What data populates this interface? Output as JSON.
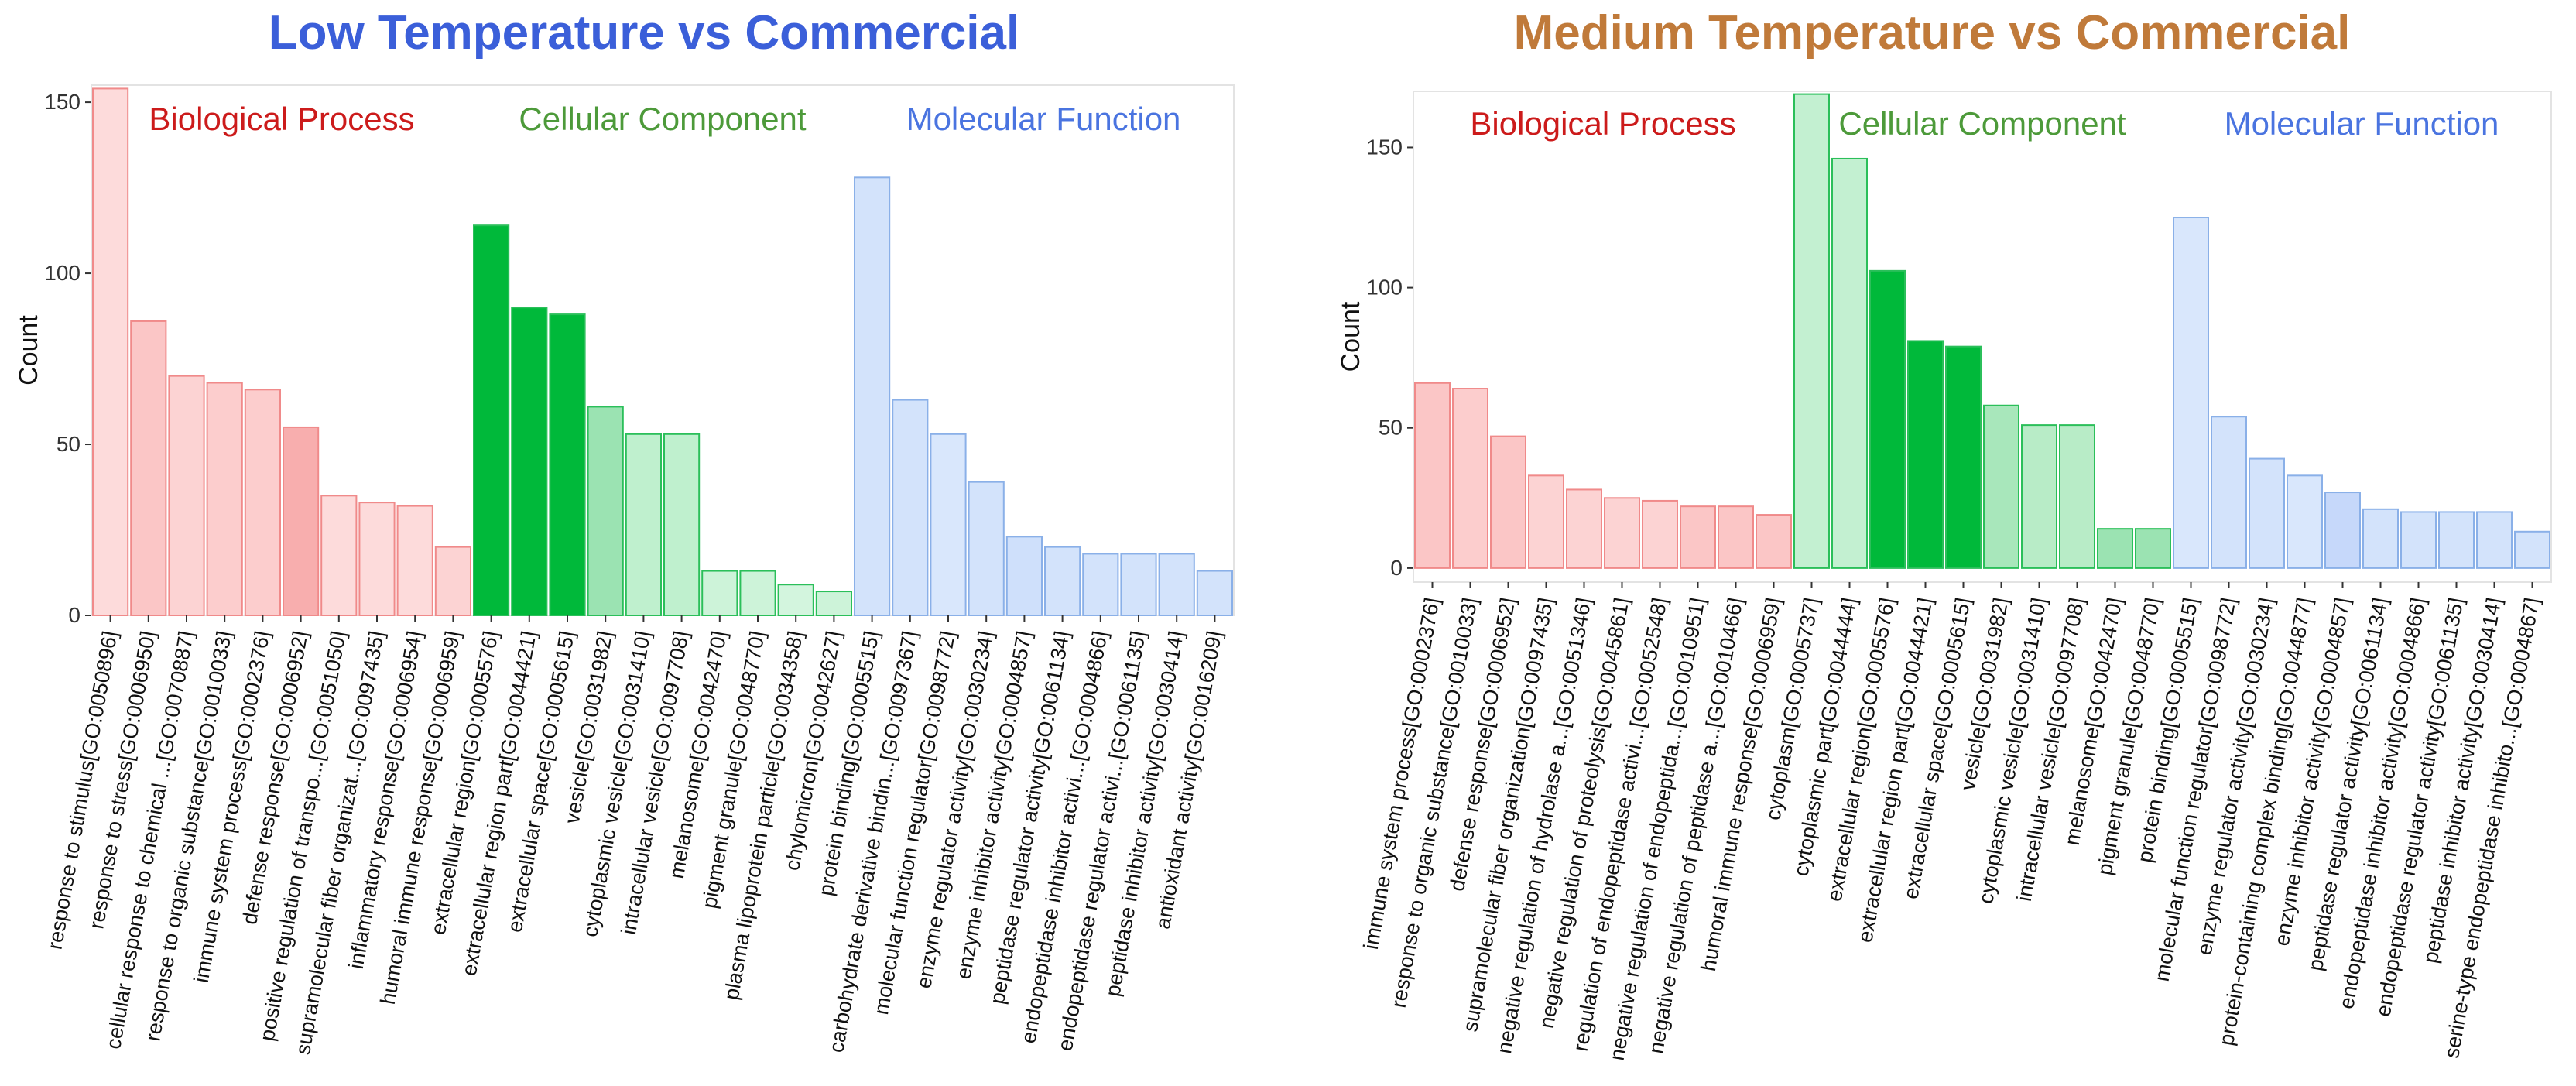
{
  "colors": {
    "title_left": "#3b5fd9",
    "title_right": "#c07a3a",
    "bp_text": "#cc1b1b",
    "cc_text": "#4d9a3a",
    "mf_text": "#4a74e0",
    "bp_hue": "#f08a8a",
    "cc_hue": "#00b93a",
    "mf_hue": "#8ab0f0"
  },
  "chart_data": [
    {
      "type": "bar",
      "title": "Low Temperature vs Commercial",
      "ylabel": "Count",
      "xlabel": "",
      "ylim": [
        0,
        155
      ],
      "yticks": [
        0,
        50,
        100,
        150
      ],
      "group_labels": [
        "Biological Process",
        "Cellular Component",
        "Molecular Function"
      ],
      "categories": [
        "response to stimulus[GO:0050896]",
        "response to stress[GO:0006950]",
        "cellular response to chemical ...[GO:0070887]",
        "response to organic substance[GO:0010033]",
        "immune system process[GO:0002376]",
        "defense response[GO:0006952]",
        "positive regulation of transpo...[GO:0051050]",
        "supramolecular fiber organizat...[GO:0097435]",
        "inflammatory response[GO:0006954]",
        "humoral immune response[GO:0006959]",
        "extracellular region[GO:0005576]",
        "extracellular region part[GO:0044421]",
        "extracellular space[GO:0005615]",
        "vesicle[GO:0031982]",
        "cytoplasmic vesicle[GO:0031410]",
        "intracellular vesicle[GO:0097708]",
        "melanosome[GO:0042470]",
        "pigment granule[GO:0048770]",
        "plasma lipoprotein particle[GO:0034358]",
        "chylomicron[GO:0042627]",
        "protein binding[GO:0005515]",
        "carbohydrate derivative bindin...[GO:0097367]",
        "molecular function regulator[GO:0098772]",
        "enzyme regulator activity[GO:0030234]",
        "enzyme inhibitor activity[GO:0004857]",
        "peptidase regulator activity[GO:0061134]",
        "endopeptidase inhibitor activi...[GO:0004866]",
        "endopeptidase regulator activi...[GO:0061135]",
        "peptidase inhibitor activity[GO:0030414]",
        "antioxidant activity[GO:0016209]"
      ],
      "groups": [
        "BP",
        "BP",
        "BP",
        "BP",
        "BP",
        "BP",
        "BP",
        "BP",
        "BP",
        "BP",
        "CC",
        "CC",
        "CC",
        "CC",
        "CC",
        "CC",
        "CC",
        "CC",
        "CC",
        "CC",
        "MF",
        "MF",
        "MF",
        "MF",
        "MF",
        "MF",
        "MF",
        "MF",
        "MF",
        "MF"
      ],
      "values": [
        154,
        86,
        70,
        68,
        66,
        55,
        35,
        33,
        32,
        20,
        114,
        90,
        88,
        61,
        53,
        53,
        13,
        13,
        9,
        7,
        128,
        63,
        53,
        39,
        23,
        20,
        18,
        18,
        18,
        13
      ],
      "fills": [
        "#fddbdb",
        "#fbc6c6",
        "#fcd3d3",
        "#fccdcd",
        "#fccdcd",
        "#f8aeae",
        "#fddbdb",
        "#fddbdb",
        "#fddbdb",
        "#fcd3d3",
        "#00b93a",
        "#00b93a",
        "#00b93a",
        "#9be3b2",
        "#bff0ce",
        "#bff0ce",
        "#cdf3d9",
        "#cdf3d9",
        "#d3f5de",
        "#cdf3d9",
        "#d3e3fb",
        "#d3e3fb",
        "#d9e7fc",
        "#d3e3fb",
        "#cfe0fb",
        "#d3e3fb",
        "#d3e3fb",
        "#d3e3fb",
        "#d3e3fb",
        "#d3e3fb"
      ]
    },
    {
      "type": "bar",
      "title": "Medium Temperature vs Commercial",
      "ylabel": "Count",
      "xlabel": "",
      "ylim": [
        -5,
        170
      ],
      "yticks": [
        0,
        50,
        100,
        150
      ],
      "group_labels": [
        "Biological Process",
        "Cellular Component",
        "Molecular Function"
      ],
      "categories": [
        "immune system process[GO:0002376]",
        "response to organic substance[GO:0010033]",
        "defense response[GO:0006952]",
        "supramolecular fiber organization[GO:0097435]",
        "negative regulation of hydrolase a...[GO:0051346]",
        "negative regulation of proteolysis[GO:0045861]",
        "regulation of endopeptidase activi...[GO:0052548]",
        "negative regulation of endopeptida...[GO:0010951]",
        "negative regulation of peptidase a...[GO:0010466]",
        "humoral immune response[GO:0006959]",
        "cytoplasm[GO:0005737]",
        "cytoplasmic part[GO:0044444]",
        "extracellular region[GO:0005576]",
        "extracellular region part[GO:0044421]",
        "extracellular space[GO:0005615]",
        "vesicle[GO:0031982]",
        "cytoplasmic vesicle[GO:0031410]",
        "intracellular vesicle[GO:0097708]",
        "melanosome[GO:0042470]",
        "pigment granule[GO:0048770]",
        "protein binding[GO:0005515]",
        "molecular function regulator[GO:0098772]",
        "enzyme regulator activity[GO:0030234]",
        "protein-containing complex binding[GO:0044877]",
        "enzyme inhibitor activity[GO:0004857]",
        "peptidase regulator activity[GO:0061134]",
        "endopeptidase inhibitor activity[GO:0004866]",
        "endopeptidase regulator activity[GO:0061135]",
        "peptidase inhibitor activity[GO:0030414]",
        "serine-type endopeptidase inhibito...[GO:0004867]"
      ],
      "groups": [
        "BP",
        "BP",
        "BP",
        "BP",
        "BP",
        "BP",
        "BP",
        "BP",
        "BP",
        "BP",
        "CC",
        "CC",
        "CC",
        "CC",
        "CC",
        "CC",
        "CC",
        "CC",
        "CC",
        "CC",
        "MF",
        "MF",
        "MF",
        "MF",
        "MF",
        "MF",
        "MF",
        "MF",
        "MF",
        "MF"
      ],
      "values": [
        66,
        64,
        47,
        33,
        28,
        25,
        24,
        22,
        22,
        19,
        169,
        146,
        106,
        81,
        79,
        58,
        51,
        51,
        14,
        14,
        125,
        54,
        39,
        33,
        27,
        21,
        20,
        20,
        20,
        13
      ],
      "fills": [
        "#fbc6c6",
        "#fccdcd",
        "#fbc6c6",
        "#fcd3d3",
        "#fcd3d3",
        "#fcd3d3",
        "#fcd3d3",
        "#fbc6c6",
        "#fbc6c6",
        "#fbc6c6",
        "#c3f0d1",
        "#c3f0d1",
        "#00b93a",
        "#00b93a",
        "#00b93a",
        "#a8e7bb",
        "#b8ecc7",
        "#b8ecc7",
        "#9be3b2",
        "#9be3b2",
        "#d9e7fc",
        "#d3e3fb",
        "#d3e3fb",
        "#d9e7fc",
        "#c6d8fa",
        "#d3e3fb",
        "#d3e3fb",
        "#d3e3fb",
        "#d3e3fb",
        "#d3e3fb"
      ]
    }
  ]
}
